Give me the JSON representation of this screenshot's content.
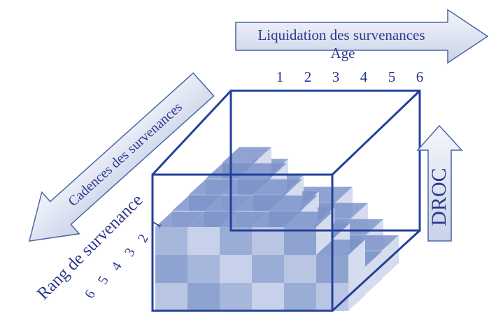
{
  "top_arrow": {
    "label": "Liquidation des survenances"
  },
  "age_axis": {
    "title": "Age",
    "ticks": [
      "1",
      "2",
      "3",
      "4",
      "5",
      "6"
    ]
  },
  "left_arrow": {
    "label": "Cadences des survenances"
  },
  "rank_axis": {
    "title": "Rang de survenance",
    "ticks": [
      "1",
      "2",
      "3",
      "4",
      "5",
      "6"
    ]
  },
  "right_arrow": {
    "label": "DROC"
  }
}
